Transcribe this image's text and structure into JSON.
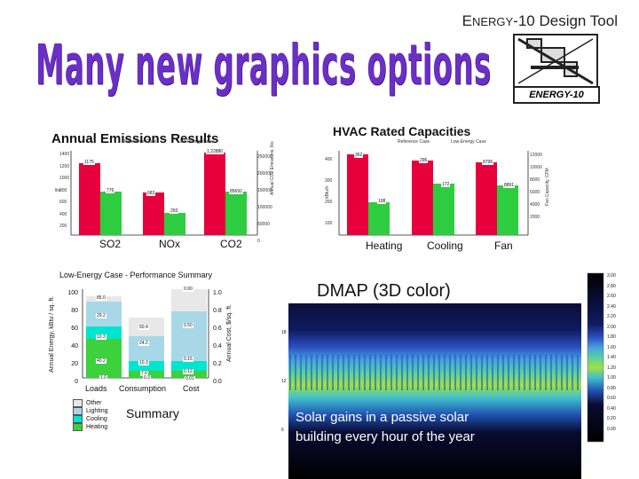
{
  "header": {
    "product_first": "E",
    "product_rest": "NERGY",
    "product_suffix": "-10 Design Tool"
  },
  "title": "Many new graphics options",
  "logo": {
    "label": "ENERGY-10"
  },
  "emissions_chart": {
    "type": "bar",
    "title": "Annual Emissions Results",
    "legend": [
      "Reference Case",
      "Low-Energy Case"
    ],
    "categories": [
      "SO2",
      "NOx",
      "CO2"
    ],
    "ref_color": "#e8003d",
    "low_color": "#2ecc40",
    "left_axis_label": "lbs",
    "right_axis_label": "Annual CO2 Emissions, lbs",
    "left_ticks": [
      "1400",
      "1200",
      "1000",
      "800",
      "600",
      "400",
      "200"
    ],
    "right_ticks": [
      "250000",
      "200000",
      "150000",
      "100000",
      "50000",
      "0"
    ],
    "bar_values": [
      {
        "ref": "1175",
        "low": "776"
      },
      {
        "ref": "683",
        "low": "293"
      },
      {
        "ref": "1,22880",
        "low": "85692"
      }
    ]
  },
  "hvac_chart": {
    "type": "bar",
    "title": "HVAC Rated Capacities",
    "legend": [
      "Reference Case",
      "Low-Energy Case"
    ],
    "categories": [
      "Heating",
      "Cooling",
      "Fan"
    ],
    "left_axis_label": "kBtu/h",
    "right_axis_label": "Fan Capacity, CFM",
    "left_ticks": [
      "400",
      "300",
      "200",
      "100"
    ],
    "right_ticks": [
      "12000",
      "10000",
      "8000",
      "6000",
      "4000",
      "2000"
    ],
    "bar_values": [
      {
        "ref": "362",
        "low": "108"
      },
      {
        "ref": "296",
        "low": "172"
      },
      {
        "ref": "8796",
        "low": "8891"
      }
    ]
  },
  "summary_chart": {
    "type": "bar",
    "title": "Low-Energy Case - Performance Summary",
    "left_axis_label": "Annual Energy, kBtu / sq. ft.",
    "right_axis_label": "Annual Cost, $/sq. ft.",
    "categories": [
      "Loads",
      "Consumption",
      "Cost"
    ],
    "left_ticks": [
      "100",
      "80",
      "60",
      "40",
      "20",
      "0"
    ],
    "right_ticks": [
      "1.0",
      "0.8",
      "0.6",
      "0.4",
      "0.2",
      "0.0"
    ],
    "segment_labels": {
      "loads": [
        "40.2",
        "10.3",
        "29.2",
        "85.0"
      ],
      "consumption": [
        "7.6",
        "10.3",
        "24.2",
        "50.4"
      ],
      "cost": [
        "0.12",
        "0.15",
        "0.50",
        "0.90"
      ],
      "bottom": [
        "1.0",
        "0.3",
        "0.01"
      ]
    },
    "legend": [
      "Other",
      "Lighting",
      "Cooling",
      "Heating"
    ],
    "legend_colors": [
      "#e8e8e8",
      "#a8d8e8",
      "#00e5d0",
      "#3dd13d"
    ],
    "caption": "Summary"
  },
  "dmap": {
    "title": "DMAP  (3D color)",
    "caption_line1": "Solar gains in a passive solar",
    "caption_line2": "building every hour of the year",
    "left_ticks": [
      "18",
      "12",
      "6"
    ],
    "scale_ticks": [
      "3.00",
      "2.80",
      "2.60",
      "2.40",
      "2.20",
      "2.00",
      "1.80",
      "1.60",
      "1.40",
      "1.20",
      "1.00",
      "0.80",
      "0.60",
      "0.40",
      "0.20",
      "0.00"
    ]
  }
}
